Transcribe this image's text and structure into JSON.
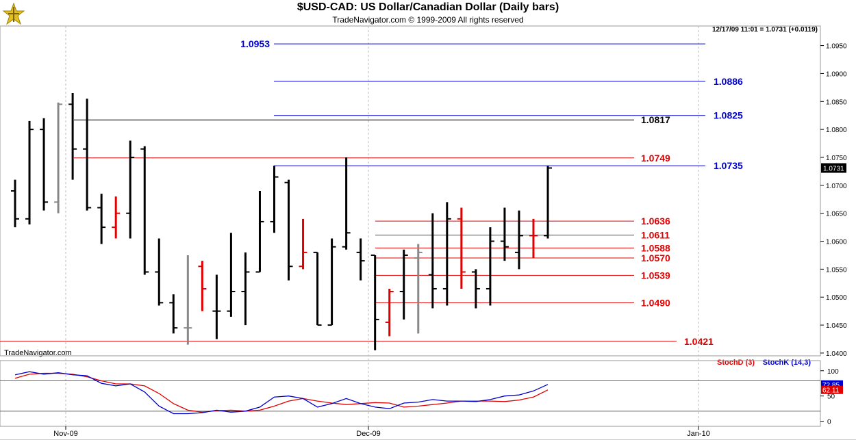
{
  "title": "$USD-CAD:  US Dollar/Canadian Dollar  (Daily bars)",
  "copyright": "TradeNavigator.com © 1999-2009 All rights reserved",
  "quote": "12/17/09 11:01 = 1.0731 (+0.0119)",
  "brand": "TradeNavigator.com",
  "colors": {
    "up": "#000000",
    "down_red": "#e00000",
    "gray": "#888888",
    "blue": "#0000cc",
    "red": "#e00000",
    "black": "#000000"
  },
  "chart_data": [
    {
      "type": "bar",
      "subtype": "ohlc",
      "title": "$USD-CAD:  US Dollar/Canadian Dollar  (Daily bars)",
      "ylim": [
        1.0395,
        1.0985
      ],
      "yticks": [
        "1.0950",
        "1.0900",
        "1.0850",
        "1.0800",
        "1.0750",
        "1.0700",
        "1.0650",
        "1.0600",
        "1.0550",
        "1.0500",
        "1.0450",
        "1.0400"
      ],
      "last_price_label": "1.0731",
      "last_price": 1.0731,
      "xticks": [
        "Nov-09",
        "Dec-09",
        "Jan-10"
      ],
      "bars": [
        {
          "date": "2009-10-29",
          "o": 1.069,
          "h": 1.071,
          "l": 1.0625,
          "c": 1.064,
          "color": "black"
        },
        {
          "date": "2009-10-30",
          "o": 1.064,
          "h": 1.0815,
          "l": 1.063,
          "c": 1.08,
          "color": "black"
        },
        {
          "date": "2009-11-02",
          "o": 1.08,
          "h": 1.082,
          "l": 1.0655,
          "c": 1.067,
          "color": "black"
        },
        {
          "date": "2009-11-03",
          "o": 1.067,
          "h": 1.0848,
          "l": 1.065,
          "c": 1.0845,
          "color": "gray"
        },
        {
          "date": "2009-11-04",
          "o": 1.0845,
          "h": 1.0865,
          "l": 1.071,
          "c": 1.0765,
          "color": "black"
        },
        {
          "date": "2009-11-05",
          "o": 1.0765,
          "h": 1.0855,
          "l": 1.0655,
          "c": 1.066,
          "color": "black"
        },
        {
          "date": "2009-11-06",
          "o": 1.066,
          "h": 1.0685,
          "l": 1.0595,
          "c": 1.0625,
          "color": "black"
        },
        {
          "date": "2009-11-09",
          "o": 1.0625,
          "h": 1.068,
          "l": 1.0605,
          "c": 1.065,
          "color": "red"
        },
        {
          "date": "2009-11-10",
          "o": 1.065,
          "h": 1.078,
          "l": 1.0605,
          "c": 1.075,
          "color": "black"
        },
        {
          "date": "2009-11-11",
          "o": 1.0765,
          "h": 1.077,
          "l": 1.054,
          "c": 1.0545,
          "color": "black"
        },
        {
          "date": "2009-11-12",
          "o": 1.0545,
          "h": 1.0605,
          "l": 1.0485,
          "c": 1.049,
          "color": "black"
        },
        {
          "date": "2009-11-13",
          "o": 1.049,
          "h": 1.0505,
          "l": 1.0435,
          "c": 1.0445,
          "color": "black"
        },
        {
          "date": "2009-11-16",
          "o": 1.0445,
          "h": 1.0575,
          "l": 1.0415,
          "c": 1.0445,
          "color": "gray"
        },
        {
          "date": "2009-11-17",
          "o": 1.0555,
          "h": 1.0565,
          "l": 1.0475,
          "c": 1.0515,
          "color": "red"
        },
        {
          "date": "2009-11-18",
          "o": 1.0475,
          "h": 1.054,
          "l": 1.0425,
          "c": 1.0475,
          "color": "black"
        },
        {
          "date": "2009-11-19",
          "o": 1.0475,
          "h": 1.0615,
          "l": 1.0465,
          "c": 1.051,
          "color": "black"
        },
        {
          "date": "2009-11-20",
          "o": 1.051,
          "h": 1.058,
          "l": 1.045,
          "c": 1.0545,
          "color": "black"
        },
        {
          "date": "2009-11-23",
          "o": 1.0545,
          "h": 1.069,
          "l": 1.0545,
          "c": 1.0635,
          "color": "black"
        },
        {
          "date": "2009-11-24",
          "o": 1.0635,
          "h": 1.0735,
          "l": 1.0615,
          "c": 1.0715,
          "color": "black"
        },
        {
          "date": "2009-11-25",
          "o": 1.0705,
          "h": 1.071,
          "l": 1.053,
          "c": 1.0555,
          "color": "black"
        },
        {
          "date": "2009-11-26",
          "o": 1.0555,
          "h": 1.064,
          "l": 1.055,
          "c": 1.058,
          "color": "red"
        },
        {
          "date": "2009-11-27",
          "o": 1.058,
          "h": 1.058,
          "l": 1.045,
          "c": 1.045,
          "color": "black"
        },
        {
          "date": "2009-11-30",
          "o": 1.045,
          "h": 1.0605,
          "l": 1.045,
          "c": 1.059,
          "color": "black"
        },
        {
          "date": "2009-12-01",
          "o": 1.059,
          "h": 1.075,
          "l": 1.0585,
          "c": 1.0615,
          "color": "black"
        },
        {
          "date": "2009-12-02",
          "o": 1.058,
          "h": 1.0605,
          "l": 1.053,
          "c": 1.0565,
          "color": "black"
        },
        {
          "date": "2009-12-03",
          "o": 1.0575,
          "h": 1.0575,
          "l": 1.0405,
          "c": 1.046,
          "color": "black"
        },
        {
          "date": "2009-12-04",
          "o": 1.0455,
          "h": 1.0515,
          "l": 1.043,
          "c": 1.051,
          "color": "red"
        },
        {
          "date": "2009-12-07",
          "o": 1.051,
          "h": 1.0585,
          "l": 1.046,
          "c": 1.0575,
          "color": "black"
        },
        {
          "date": "2009-12-08",
          "o": 1.057,
          "h": 1.0595,
          "l": 1.0435,
          "c": 1.058,
          "color": "gray"
        },
        {
          "date": "2009-12-09",
          "o": 1.054,
          "h": 1.065,
          "l": 1.048,
          "c": 1.0515,
          "color": "black"
        },
        {
          "date": "2009-12-10",
          "o": 1.0515,
          "h": 1.067,
          "l": 1.0485,
          "c": 1.064,
          "color": "black"
        },
        {
          "date": "2009-12-11",
          "o": 1.064,
          "h": 1.066,
          "l": 1.0515,
          "c": 1.0545,
          "color": "red"
        },
        {
          "date": "2009-12-14",
          "o": 1.0545,
          "h": 1.055,
          "l": 1.048,
          "c": 1.0515,
          "color": "black"
        },
        {
          "date": "2009-12-15",
          "o": 1.0515,
          "h": 1.0625,
          "l": 1.0485,
          "c": 1.06,
          "color": "black"
        },
        {
          "date": "2009-12-16",
          "o": 1.06,
          "h": 1.066,
          "l": 1.0565,
          "c": 1.059,
          "color": "black"
        },
        {
          "date": "2009-12-16b",
          "o": 1.058,
          "h": 1.0655,
          "l": 1.055,
          "c": 1.061,
          "color": "black"
        },
        {
          "date": "2009-12-17a",
          "o": 1.061,
          "h": 1.064,
          "l": 1.057,
          "c": 1.061,
          "color": "red"
        },
        {
          "date": "2009-12-17",
          "o": 1.061,
          "h": 1.0735,
          "l": 1.0605,
          "c": 1.0731,
          "color": "black"
        }
      ],
      "levels": [
        {
          "label": "1.0953",
          "value": 1.0953,
          "color": "blue",
          "label_side": "left"
        },
        {
          "label": "1.0886",
          "value": 1.0886,
          "color": "blue",
          "label_side": "right"
        },
        {
          "label": "1.0825",
          "value": 1.0825,
          "color": "blue",
          "label_side": "right"
        },
        {
          "label": "1.0817",
          "value": 1.0817,
          "color": "black",
          "label_side": "mid"
        },
        {
          "label": "1.0749",
          "value": 1.0749,
          "color": "red",
          "label_side": "mid"
        },
        {
          "label": "1.0735",
          "value": 1.0735,
          "color": "blue",
          "label_side": "right"
        },
        {
          "label": "1.0636",
          "value": 1.0636,
          "color": "red",
          "label_side": "mid"
        },
        {
          "label": "1.0611",
          "value": 1.0611,
          "color": "red",
          "label_side": "mid"
        },
        {
          "label": "1.0588",
          "value": 1.0588,
          "color": "red",
          "label_side": "mid"
        },
        {
          "label": "1.0570",
          "value": 1.057,
          "color": "red",
          "label_side": "mid"
        },
        {
          "label": "1.0539",
          "value": 1.0539,
          "color": "red",
          "label_side": "mid"
        },
        {
          "label": "1.0490",
          "value": 1.049,
          "color": "red",
          "label_side": "mid"
        },
        {
          "label": "1.0421",
          "value": 1.0421,
          "color": "red",
          "label_side": "far"
        }
      ]
    },
    {
      "type": "line",
      "ylim": [
        -10,
        120
      ],
      "yticks": [
        "100",
        "50",
        "0"
      ],
      "reference_lines": [
        80,
        20
      ],
      "last_labels": {
        "k": "72.85",
        "d": "62.11"
      },
      "series": [
        {
          "name": "StochD (3)",
          "color": "red",
          "values": [
            85,
            93,
            95,
            95,
            93,
            88,
            80,
            74,
            74,
            70,
            55,
            35,
            22,
            18,
            21,
            22,
            20,
            22,
            30,
            40,
            45,
            40,
            36,
            33,
            35,
            37,
            36,
            28,
            30,
            33,
            36,
            40,
            40,
            40,
            39,
            42,
            48,
            62
          ]
        },
        {
          "name": "StochK (14,3)",
          "color": "blue",
          "values": [
            92,
            98,
            93,
            96,
            92,
            90,
            75,
            70,
            74,
            58,
            30,
            15,
            15,
            17,
            22,
            18,
            20,
            28,
            48,
            50,
            45,
            28,
            35,
            45,
            35,
            28,
            25,
            36,
            38,
            43,
            40,
            40,
            39,
            43,
            50,
            52,
            60,
            72.85
          ]
        }
      ]
    }
  ]
}
